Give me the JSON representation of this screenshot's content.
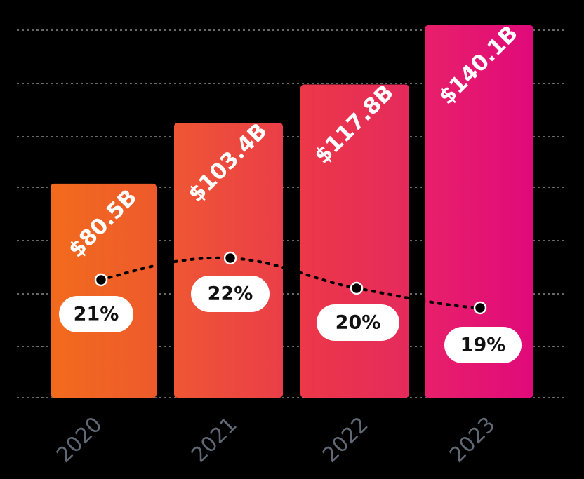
{
  "chart_data": {
    "type": "bar",
    "title": "",
    "xlabel": "",
    "ylabel": "",
    "categories": [
      "2020",
      "2021",
      "2022",
      "2023"
    ],
    "series": [
      {
        "values": [
          80.5,
          103.4,
          117.8,
          140.1
        ],
        "labels": [
          "$80.5B",
          "$103.4B",
          "$117.8B",
          "$140.1B"
        ],
        "colors": [
          [
            "#f26b1d",
            "#ee5a2c"
          ],
          [
            "#ef5634",
            "#ea3e48"
          ],
          [
            "#ec3848",
            "#e52a5c"
          ],
          [
            "#e8206a",
            "#e00a7a"
          ]
        ]
      },
      {
        "type": "line",
        "style": "dotted",
        "values": [
          21,
          22,
          20,
          19
        ],
        "labels": [
          "21%",
          "22%",
          "20%",
          "19%"
        ]
      }
    ],
    "ylim": [
      0,
      150
    ],
    "line_ylim": [
      0,
      50
    ],
    "grid": true,
    "grid_color": "#8a8a8a",
    "background": "#000000",
    "axis_label_color": "#5f6874"
  }
}
